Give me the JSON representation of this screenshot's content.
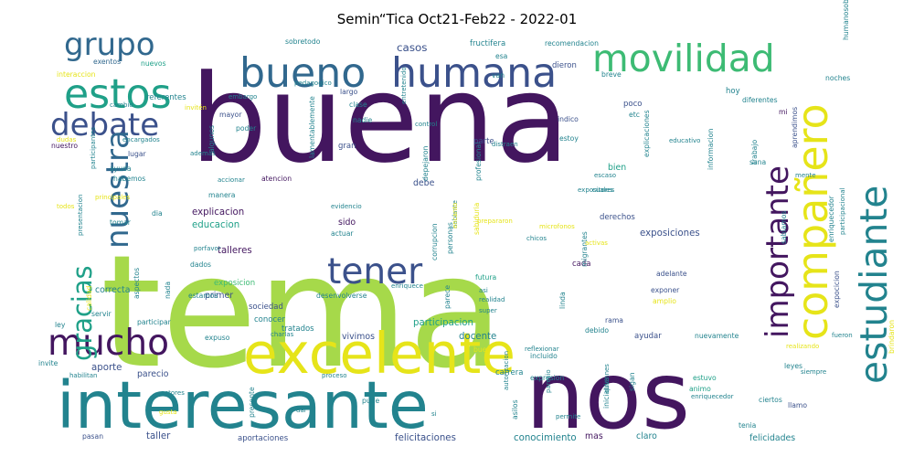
{
  "title": "Semin“Tica Oct21-Feb22 - 2022-01",
  "palette": {
    "lime": "#a6d94a",
    "dark_purple": "#43165f",
    "purple": "#472c7a",
    "indigo": "#3b518b",
    "blue": "#31688e",
    "teal": "#22838e",
    "teal_green": "#1fa088",
    "green": "#3dbb74",
    "yellow": "#e6e419",
    "light_green": "#7bd151"
  },
  "words": [
    {
      "text": "tema",
      "color": "lime",
      "size": 1.0,
      "rotate": 0
    },
    {
      "text": "buena",
      "color": "dark_purple",
      "size": 0.78,
      "rotate": 0
    },
    {
      "text": "nos",
      "color": "dark_purple",
      "size": 0.6,
      "rotate": 0
    },
    {
      "text": "interesante",
      "color": "teal",
      "size": 0.42,
      "rotate": 0
    },
    {
      "text": "excelente",
      "color": "yellow",
      "size": 0.36,
      "rotate": 0
    },
    {
      "text": "bueno",
      "color": "blue",
      "size": 0.26,
      "rotate": 0
    },
    {
      "text": "humana",
      "color": "indigo",
      "size": 0.26,
      "rotate": 0
    },
    {
      "text": "movilidad",
      "color": "green",
      "size": 0.24,
      "rotate": 0
    },
    {
      "text": "grupo",
      "color": "blue",
      "size": 0.2,
      "rotate": 0
    },
    {
      "text": "estos",
      "color": "teal_green",
      "size": 0.26,
      "rotate": 0
    },
    {
      "text": "debate",
      "color": "indigo",
      "size": 0.2,
      "rotate": 0
    },
    {
      "text": "mucho",
      "color": "dark_purple",
      "size": 0.23,
      "rotate": 0
    },
    {
      "text": "tener",
      "color": "indigo",
      "size": 0.23,
      "rotate": 0
    },
    {
      "text": "compañero",
      "color": "yellow",
      "size": 0.27,
      "rotate": 270
    },
    {
      "text": "estudiante",
      "color": "teal",
      "size": 0.24,
      "rotate": 270
    },
    {
      "text": "importante",
      "color": "dark_purple",
      "size": 0.2,
      "rotate": 270
    },
    {
      "text": "nuestra",
      "color": "blue",
      "size": 0.2,
      "rotate": 270
    },
    {
      "text": "gracias",
      "color": "teal_green",
      "size": 0.17,
      "rotate": 270
    },
    {
      "text": "casos",
      "color": "indigo",
      "size": 0.07,
      "rotate": 0
    },
    {
      "text": "fructifera",
      "color": "teal",
      "size": 0.05,
      "rotate": 0
    },
    {
      "text": "recomendacion",
      "color": "teal",
      "size": 0.045,
      "rotate": 0
    },
    {
      "text": "sobretodo",
      "color": "teal",
      "size": 0.045,
      "rotate": 0
    },
    {
      "text": "breve",
      "color": "teal",
      "size": 0.045,
      "rotate": 0
    },
    {
      "text": "dieron",
      "color": "indigo",
      "size": 0.05,
      "rotate": 0
    },
    {
      "text": "esa",
      "color": "teal",
      "size": 0.045,
      "rotate": 0
    },
    {
      "text": "exentos",
      "color": "blue",
      "size": 0.045,
      "rotate": 0
    },
    {
      "text": "nuevos",
      "color": "teal_green",
      "size": 0.045,
      "rotate": 0
    },
    {
      "text": "interaccion",
      "color": "yellow",
      "size": 0.045,
      "rotate": 0
    },
    {
      "text": "referentes",
      "color": "teal",
      "size": 0.05,
      "rotate": 0
    },
    {
      "text": "largo",
      "color": "indigo",
      "size": 0.045,
      "rotate": 0
    },
    {
      "text": "clase",
      "color": "teal",
      "size": 0.045,
      "rotate": 0
    },
    {
      "text": "nadie",
      "color": "teal",
      "size": 0.045,
      "rotate": 0
    },
    {
      "text": "mayor",
      "color": "indigo",
      "size": 0.045,
      "rotate": 0
    },
    {
      "text": "poder",
      "color": "teal",
      "size": 0.045,
      "rotate": 0
    },
    {
      "text": "gran",
      "color": "indigo",
      "size": 0.05,
      "rotate": 0
    },
    {
      "text": "cada",
      "color": "dark_purple",
      "size": 0.05,
      "rotate": 0
    },
    {
      "text": "poco",
      "color": "indigo",
      "size": 0.05,
      "rotate": 0
    },
    {
      "text": "hoy",
      "color": "teal",
      "size": 0.05,
      "rotate": 0
    },
    {
      "text": "parte",
      "color": "indigo",
      "size": 0.05,
      "rotate": 0
    },
    {
      "text": "indico",
      "color": "indigo",
      "size": 0.045,
      "rotate": 0
    },
    {
      "text": "estoy",
      "color": "teal",
      "size": 0.045,
      "rotate": 0
    },
    {
      "text": "bien",
      "color": "teal_green",
      "size": 0.055,
      "rotate": 0
    },
    {
      "text": "mi",
      "color": "dark_purple",
      "size": 0.045,
      "rotate": 0
    },
    {
      "text": "noches",
      "color": "teal",
      "size": 0.045,
      "rotate": 0
    },
    {
      "text": "diferentes",
      "color": "teal",
      "size": 0.045,
      "rotate": 0
    },
    {
      "text": "sana",
      "color": "teal",
      "size": 0.045,
      "rotate": 0
    },
    {
      "text": "nuestro",
      "color": "dark_purple",
      "size": 0.045,
      "rotate": 0
    },
    {
      "text": "lugar",
      "color": "indigo",
      "size": 0.045,
      "rotate": 0
    },
    {
      "text": "ayuda",
      "color": "teal",
      "size": 0.045,
      "rotate": 0
    },
    {
      "text": "habemos",
      "color": "teal",
      "size": 0.045,
      "rotate": 0
    },
    {
      "text": "atencion",
      "color": "dark_purple",
      "size": 0.045,
      "rotate": 0
    },
    {
      "text": "debe",
      "color": "indigo",
      "size": 0.055,
      "rotate": 0
    },
    {
      "text": "manera",
      "color": "teal",
      "size": 0.045,
      "rotate": 0
    },
    {
      "text": "explicacion",
      "color": "dark_purple",
      "size": 0.06,
      "rotate": 0
    },
    {
      "text": "educacion",
      "color": "teal_green",
      "size": 0.06,
      "rotate": 0
    },
    {
      "text": "sido",
      "color": "dark_purple",
      "size": 0.055,
      "rotate": 0
    },
    {
      "text": "actuar",
      "color": "teal",
      "size": 0.045,
      "rotate": 0
    },
    {
      "text": "talleres",
      "color": "dark_purple",
      "size": 0.06,
      "rotate": 0
    },
    {
      "text": "dados",
      "color": "teal",
      "size": 0.045,
      "rotate": 0
    },
    {
      "text": "exposicion",
      "color": "green",
      "size": 0.05,
      "rotate": 0
    },
    {
      "text": "primer",
      "color": "indigo",
      "size": 0.055,
      "rotate": 0
    },
    {
      "text": "estamos",
      "color": "teal",
      "size": 0.045,
      "rotate": 0
    },
    {
      "text": "desenvolverse",
      "color": "teal",
      "size": 0.045,
      "rotate": 0
    },
    {
      "text": "derechos",
      "color": "indigo",
      "size": 0.05,
      "rotate": 0
    },
    {
      "text": "exposiciones",
      "color": "indigo",
      "size": 0.06,
      "rotate": 0
    },
    {
      "text": "adelante",
      "color": "indigo",
      "size": 0.045,
      "rotate": 0
    },
    {
      "text": "exponer",
      "color": "indigo",
      "size": 0.045,
      "rotate": 0
    },
    {
      "text": "amplio",
      "color": "yellow",
      "size": 0.045,
      "rotate": 0
    },
    {
      "text": "futura",
      "color": "teal_green",
      "size": 0.045,
      "rotate": 0
    },
    {
      "text": "rama",
      "color": "indigo",
      "size": 0.045,
      "rotate": 0
    },
    {
      "text": "ley",
      "color": "teal",
      "size": 0.045,
      "rotate": 0
    },
    {
      "text": "conocer",
      "color": "teal",
      "size": 0.05,
      "rotate": 0
    },
    {
      "text": "sociedad",
      "color": "indigo",
      "size": 0.05,
      "rotate": 0
    },
    {
      "text": "tratados",
      "color": "teal",
      "size": 0.05,
      "rotate": 0
    },
    {
      "text": "expuso",
      "color": "teal",
      "size": 0.045,
      "rotate": 0
    },
    {
      "text": "vivimos",
      "color": "indigo",
      "size": 0.055,
      "rotate": 0
    },
    {
      "text": "docente",
      "color": "teal",
      "size": 0.06,
      "rotate": 0
    },
    {
      "text": "participacion",
      "color": "teal_green",
      "size": 0.06,
      "rotate": 0
    },
    {
      "text": "buen",
      "color": "yellow",
      "size": 0.045,
      "rotate": 0
    },
    {
      "text": "debido",
      "color": "teal",
      "size": 0.045,
      "rotate": 0
    },
    {
      "text": "ayudar",
      "color": "indigo",
      "size": 0.05,
      "rotate": 0
    },
    {
      "text": "nuevamente",
      "color": "teal",
      "size": 0.045,
      "rotate": 0
    },
    {
      "text": "incluido",
      "color": "teal",
      "size": 0.045,
      "rotate": 0
    },
    {
      "text": "aporte",
      "color": "indigo",
      "size": 0.06,
      "rotate": 0
    },
    {
      "text": "parecio",
      "color": "indigo",
      "size": 0.055,
      "rotate": 0
    },
    {
      "text": "invite",
      "color": "teal",
      "size": 0.045,
      "rotate": 0
    },
    {
      "text": "pude",
      "color": "teal",
      "size": 0.045,
      "rotate": 0
    },
    {
      "text": "carrera",
      "color": "teal",
      "size": 0.05,
      "rotate": 0
    },
    {
      "text": "expresion",
      "color": "teal",
      "size": 0.045,
      "rotate": 0
    },
    {
      "text": "estuvo",
      "color": "teal_green",
      "size": 0.045,
      "rotate": 0
    },
    {
      "text": "animo",
      "color": "teal_green",
      "size": 0.045,
      "rotate": 0
    },
    {
      "text": "leyes",
      "color": "teal",
      "size": 0.045,
      "rotate": 0
    },
    {
      "text": "ciertos",
      "color": "teal",
      "size": 0.045,
      "rotate": 0
    },
    {
      "text": "llamo",
      "color": "indigo",
      "size": 0.045,
      "rotate": 0
    },
    {
      "text": "tenia",
      "color": "teal",
      "size": 0.045,
      "rotate": 0
    },
    {
      "text": "pasan",
      "color": "indigo",
      "size": 0.045,
      "rotate": 0
    },
    {
      "text": "taller",
      "color": "indigo",
      "size": 0.06,
      "rotate": 0
    },
    {
      "text": "aportaciones",
      "color": "indigo",
      "size": 0.05,
      "rotate": 0
    },
    {
      "text": "felicitaciones",
      "color": "indigo",
      "size": 0.06,
      "rotate": 0
    },
    {
      "text": "conocimiento",
      "color": "teal",
      "size": 0.06,
      "rotate": 0
    },
    {
      "text": "mas",
      "color": "dark_purple",
      "size": 0.055,
      "rotate": 0
    },
    {
      "text": "claro",
      "color": "teal",
      "size": 0.055,
      "rotate": 0
    },
    {
      "text": "felicidades",
      "color": "teal",
      "size": 0.055,
      "rotate": 0
    },
    {
      "text": "correcta",
      "color": "teal",
      "size": 0.055,
      "rotate": 0
    },
    {
      "text": "servir",
      "color": "teal",
      "size": 0.045,
      "rotate": 0
    },
    {
      "text": "participar",
      "color": "teal",
      "size": 0.045,
      "rotate": 0
    },
    {
      "text": "tomar",
      "color": "teal",
      "size": 0.045,
      "rotate": 0
    },
    {
      "text": "dia",
      "color": "teal",
      "size": 0.045,
      "rotate": 0
    },
    {
      "text": "etc",
      "color": "teal",
      "size": 0.045,
      "rotate": 0
    },
    {
      "text": "explicaciones",
      "color": "teal",
      "size": 0.045,
      "rotate": 270
    },
    {
      "text": "informacion",
      "color": "teal",
      "size": 0.045,
      "rotate": 270
    },
    {
      "text": "trabajo",
      "color": "teal",
      "size": 0.045,
      "rotate": 270
    },
    {
      "text": "aprendimos",
      "color": "indigo",
      "size": 0.045,
      "rotate": 270
    },
    {
      "text": "sabiamos",
      "color": "teal",
      "size": 0.045,
      "rotate": 270
    },
    {
      "text": "enriquecedor",
      "color": "teal",
      "size": 0.045,
      "rotate": 270
    },
    {
      "text": "expocicion",
      "color": "indigo",
      "size": 0.045,
      "rotate": 270
    },
    {
      "text": "brindaron",
      "color": "yellow",
      "size": 0.045,
      "rotate": 270
    },
    {
      "text": "depejaron",
      "color": "teal",
      "size": 0.045,
      "rotate": 270
    },
    {
      "text": "profesional",
      "color": "teal",
      "size": 0.045,
      "rotate": 270
    },
    {
      "text": "corrupcion",
      "color": "teal",
      "size": 0.045,
      "rotate": 270
    },
    {
      "text": "personas",
      "color": "teal",
      "size": 0.045,
      "rotate": 270
    },
    {
      "text": "parece",
      "color": "teal",
      "size": 0.045,
      "rotate": 270
    },
    {
      "text": "linda",
      "color": "teal",
      "size": 0.045,
      "rotate": 270
    },
    {
      "text": "migrantes",
      "color": "teal",
      "size": 0.045,
      "rotate": 270
    },
    {
      "text": "iniciativa",
      "color": "teal",
      "size": 0.045,
      "rotate": 270
    },
    {
      "text": "sigan",
      "color": "teal",
      "size": 0.045,
      "rotate": 270
    },
    {
      "text": "asilos",
      "color": "teal",
      "size": 0.045,
      "rotate": 270
    },
    {
      "text": "presente",
      "color": "teal",
      "size": 0.045,
      "rotate": 270
    },
    {
      "text": "nada",
      "color": "teal",
      "size": 0.045,
      "rotate": 270
    },
    {
      "text": "aspectos",
      "color": "teal",
      "size": 0.045,
      "rotate": 270
    },
    {
      "text": "calidad",
      "color": "yellow",
      "size": 0.045,
      "rotate": 270
    },
    {
      "text": "algunos",
      "color": "teal",
      "size": 0.045,
      "rotate": 270
    },
    {
      "text": "lamentablemente",
      "color": "teal",
      "size": 0.045,
      "rotate": 270
    },
    {
      "text": "sabiduria",
      "color": "yellow",
      "size": 0.045,
      "rotate": 270
    },
    {
      "text": "humanosobre",
      "color": "teal",
      "size": 0.045,
      "rotate": 270
    },
    {
      "text": "van",
      "color": "teal",
      "size": 0.045,
      "rotate": 0
    },
    {
      "text": "pedagogico",
      "color": "teal",
      "size": 0.025,
      "rotate": 0
    },
    {
      "text": "embargo",
      "color": "teal",
      "size": 0.025,
      "rotate": 0
    },
    {
      "text": "invitén",
      "color": "yellow",
      "size": 0.025,
      "rotate": 0
    },
    {
      "text": "cambio",
      "color": "teal",
      "size": 0.025,
      "rotate": 0
    },
    {
      "text": "control",
      "color": "teal",
      "size": 0.025,
      "rotate": 0
    },
    {
      "text": "distraen",
      "color": "teal",
      "size": 0.025,
      "rotate": 0
    },
    {
      "text": "educativo",
      "color": "teal",
      "size": 0.025,
      "rotate": 0
    },
    {
      "text": "encargados",
      "color": "teal",
      "size": 0.025,
      "rotate": 0
    },
    {
      "text": "ademas",
      "color": "teal",
      "size": 0.025,
      "rotate": 0
    },
    {
      "text": "accionar",
      "color": "teal",
      "size": 0.025,
      "rotate": 0
    },
    {
      "text": "escaso",
      "color": "teal",
      "size": 0.025,
      "rotate": 0
    },
    {
      "text": "expositores",
      "color": "teal",
      "size": 0.025,
      "rotate": 0
    },
    {
      "text": "cuales",
      "color": "teal",
      "size": 0.025,
      "rotate": 0
    },
    {
      "text": "mente",
      "color": "teal",
      "size": 0.025,
      "rotate": 0
    },
    {
      "text": "evidencio",
      "color": "teal",
      "size": 0.025,
      "rotate": 0
    },
    {
      "text": "prepararon",
      "color": "yellow",
      "size": 0.025,
      "rotate": 0
    },
    {
      "text": "microfonos",
      "color": "yellow",
      "size": 0.025,
      "rotate": 0
    },
    {
      "text": "chicos",
      "color": "teal",
      "size": 0.025,
      "rotate": 0
    },
    {
      "text": "activas",
      "color": "yellow",
      "size": 0.025,
      "rotate": 0
    },
    {
      "text": "porfavor",
      "color": "teal",
      "size": 0.025,
      "rotate": 0
    },
    {
      "text": "enriquece",
      "color": "teal",
      "size": 0.025,
      "rotate": 0
    },
    {
      "text": "asi",
      "color": "teal",
      "size": 0.025,
      "rotate": 0
    },
    {
      "text": "realidad",
      "color": "teal",
      "size": 0.025,
      "rotate": 0
    },
    {
      "text": "super",
      "color": "teal",
      "size": 0.025,
      "rotate": 0
    },
    {
      "text": "charlas",
      "color": "teal",
      "size": 0.025,
      "rotate": 0
    },
    {
      "text": "fueron",
      "color": "teal",
      "size": 0.025,
      "rotate": 0
    },
    {
      "text": "realizando",
      "color": "yellow",
      "size": 0.025,
      "rotate": 0
    },
    {
      "text": "habilitan",
      "color": "teal",
      "size": 0.025,
      "rotate": 0
    },
    {
      "text": "proceso",
      "color": "teal",
      "size": 0.025,
      "rotate": 0
    },
    {
      "text": "reflexionar",
      "color": "teal",
      "size": 0.025,
      "rotate": 0
    },
    {
      "text": "actores",
      "color": "teal",
      "size": 0.025,
      "rotate": 0
    },
    {
      "text": "gusta",
      "color": "yellow",
      "size": 0.025,
      "rotate": 0
    },
    {
      "text": "dar",
      "color": "teal",
      "size": 0.025,
      "rotate": 0
    },
    {
      "text": "si",
      "color": "teal",
      "size": 0.025,
      "rotate": 0
    },
    {
      "text": "enriquecedor",
      "color": "teal",
      "size": 0.025,
      "rotate": 0
    },
    {
      "text": "siempre",
      "color": "teal",
      "size": 0.025,
      "rotate": 0
    },
    {
      "text": "permite",
      "color": "teal",
      "size": 0.025,
      "rotate": 0
    },
    {
      "text": "todos",
      "color": "yellow",
      "size": 0.025,
      "rotate": 0
    },
    {
      "text": "dudas",
      "color": "yellow",
      "size": 0.025,
      "rotate": 0
    },
    {
      "text": "participantes",
      "color": "teal",
      "size": 0.025,
      "rotate": 270
    },
    {
      "text": "principales",
      "color": "yellow",
      "size": 0.025,
      "rotate": 0
    },
    {
      "text": "presentacion",
      "color": "teal",
      "size": 0.025,
      "rotate": 270
    },
    {
      "text": "entretenido",
      "color": "teal",
      "size": 0.025,
      "rotate": 270
    },
    {
      "text": "participacional",
      "color": "teal",
      "size": 0.025,
      "rotate": 270
    },
    {
      "text": "autorizacion",
      "color": "teal",
      "size": 0.025,
      "rotate": 270
    },
    {
      "text": "quiennes",
      "color": "teal",
      "size": 0.025,
      "rotate": 270
    },
    {
      "text": "paresio",
      "color": "teal",
      "size": 0.025,
      "rotate": 270
    },
    {
      "text": "hablante",
      "color": "teal",
      "size": 0.025,
      "rotate": 270
    },
    {
      "text": "encanto",
      "color": "yellow",
      "size": 0.025,
      "rotate": 270
    }
  ]
}
